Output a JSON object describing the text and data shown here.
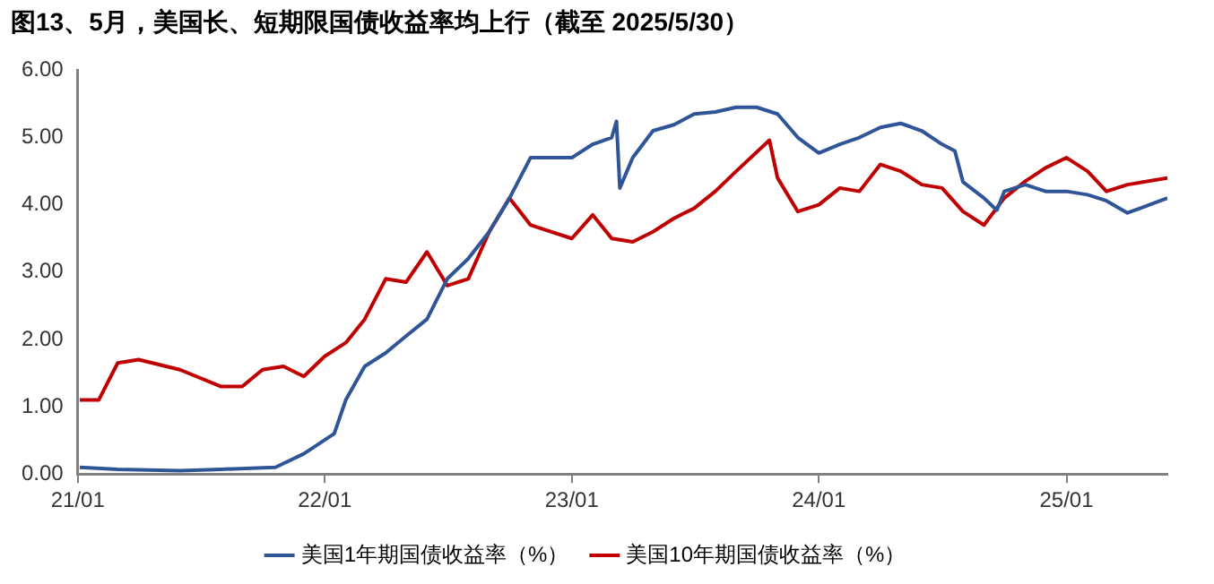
{
  "chart_data": {
    "type": "line",
    "title": "图13、5月，美国长、短期限国债收益率均上行（截至 2025/5/30）",
    "xlim": [
      "2021-01-01",
      "2025-05-30"
    ],
    "xticks": [
      {
        "value": "2021-01-01",
        "label": "21/01"
      },
      {
        "value": "2022-01-01",
        "label": "22/01"
      },
      {
        "value": "2023-01-01",
        "label": "23/01"
      },
      {
        "value": "2024-01-01",
        "label": "24/01"
      },
      {
        "value": "2025-01-01",
        "label": "25/01"
      }
    ],
    "ylim": [
      0,
      6
    ],
    "yticks": [
      {
        "value": 0,
        "label": "0.00"
      },
      {
        "value": 1,
        "label": "1.00"
      },
      {
        "value": 2,
        "label": "2.00"
      },
      {
        "value": 3,
        "label": "3.00"
      },
      {
        "value": 4,
        "label": "4.00"
      },
      {
        "value": 5,
        "label": "5.00"
      },
      {
        "value": 6,
        "label": "6.00"
      }
    ],
    "grid": false,
    "legend": "bottom",
    "marker": "none",
    "line_style": "solid",
    "series": [
      {
        "name": "美国1年期国债收益率（%）",
        "color": "#2f5597",
        "x": [
          "2021-01-04",
          "2021-03-01",
          "2021-06-01",
          "2021-08-01",
          "2021-10-20",
          "2021-12-01",
          "2022-01-15",
          "2022-02-01",
          "2022-03-01",
          "2022-04-01",
          "2022-05-01",
          "2022-06-01",
          "2022-07-01",
          "2022-08-01",
          "2022-09-01",
          "2022-10-01",
          "2022-11-01",
          "2022-12-01",
          "2023-01-01",
          "2023-02-01",
          "2023-03-01",
          "2023-03-08",
          "2023-03-13",
          "2023-04-01",
          "2023-05-01",
          "2023-06-01",
          "2023-07-01",
          "2023-08-01",
          "2023-09-01",
          "2023-10-01",
          "2023-11-01",
          "2023-12-01",
          "2024-01-01",
          "2024-02-01",
          "2024-03-01",
          "2024-04-01",
          "2024-05-01",
          "2024-06-01",
          "2024-07-01",
          "2024-07-20",
          "2024-08-01",
          "2024-09-01",
          "2024-09-20",
          "2024-10-01",
          "2024-11-01",
          "2024-12-01",
          "2025-01-01",
          "2025-02-01",
          "2025-03-01",
          "2025-04-01",
          "2025-05-30"
        ],
        "values": [
          0.1,
          0.07,
          0.05,
          0.07,
          0.1,
          0.3,
          0.6,
          1.1,
          1.6,
          1.8,
          2.05,
          2.3,
          2.9,
          3.2,
          3.6,
          4.1,
          4.7,
          4.7,
          4.7,
          4.9,
          5.0,
          5.24,
          4.25,
          4.7,
          5.1,
          5.19,
          5.35,
          5.38,
          5.45,
          5.45,
          5.35,
          5.0,
          4.77,
          4.9,
          5.0,
          5.15,
          5.21,
          5.1,
          4.9,
          4.8,
          4.34,
          4.1,
          3.92,
          4.2,
          4.3,
          4.2,
          4.2,
          4.15,
          4.06,
          3.88,
          4.1
        ]
      },
      {
        "name": "美国10年期国债收益率（%）",
        "color": "#c00000",
        "x": [
          "2021-01-04",
          "2021-02-01",
          "2021-03-01",
          "2021-04-01",
          "2021-06-01",
          "2021-08-01",
          "2021-09-01",
          "2021-10-01",
          "2021-11-01",
          "2021-12-01",
          "2022-01-01",
          "2022-02-01",
          "2022-03-01",
          "2022-04-01",
          "2022-05-01",
          "2022-06-01",
          "2022-07-01",
          "2022-08-01",
          "2022-09-01",
          "2022-10-01",
          "2022-11-01",
          "2022-12-01",
          "2023-01-01",
          "2023-02-01",
          "2023-03-01",
          "2023-04-01",
          "2023-05-01",
          "2023-06-01",
          "2023-07-01",
          "2023-08-01",
          "2023-09-01",
          "2023-10-20",
          "2023-11-01",
          "2023-12-01",
          "2024-01-01",
          "2024-02-01",
          "2024-03-01",
          "2024-04-01",
          "2024-05-01",
          "2024-06-01",
          "2024-07-01",
          "2024-08-01",
          "2024-09-01",
          "2024-10-01",
          "2024-11-01",
          "2024-12-01",
          "2025-01-01",
          "2025-02-01",
          "2025-03-01",
          "2025-04-01",
          "2025-05-30"
        ],
        "values": [
          1.1,
          1.1,
          1.65,
          1.7,
          1.55,
          1.3,
          1.3,
          1.55,
          1.6,
          1.45,
          1.75,
          1.95,
          2.3,
          2.9,
          2.85,
          3.3,
          2.8,
          2.9,
          3.6,
          4.1,
          3.7,
          3.6,
          3.5,
          3.85,
          3.5,
          3.45,
          3.6,
          3.8,
          3.95,
          4.2,
          4.5,
          4.96,
          4.4,
          3.9,
          4.0,
          4.25,
          4.2,
          4.6,
          4.5,
          4.3,
          4.25,
          3.9,
          3.7,
          4.1,
          4.35,
          4.55,
          4.7,
          4.5,
          4.2,
          4.3,
          4.4
        ]
      }
    ]
  }
}
